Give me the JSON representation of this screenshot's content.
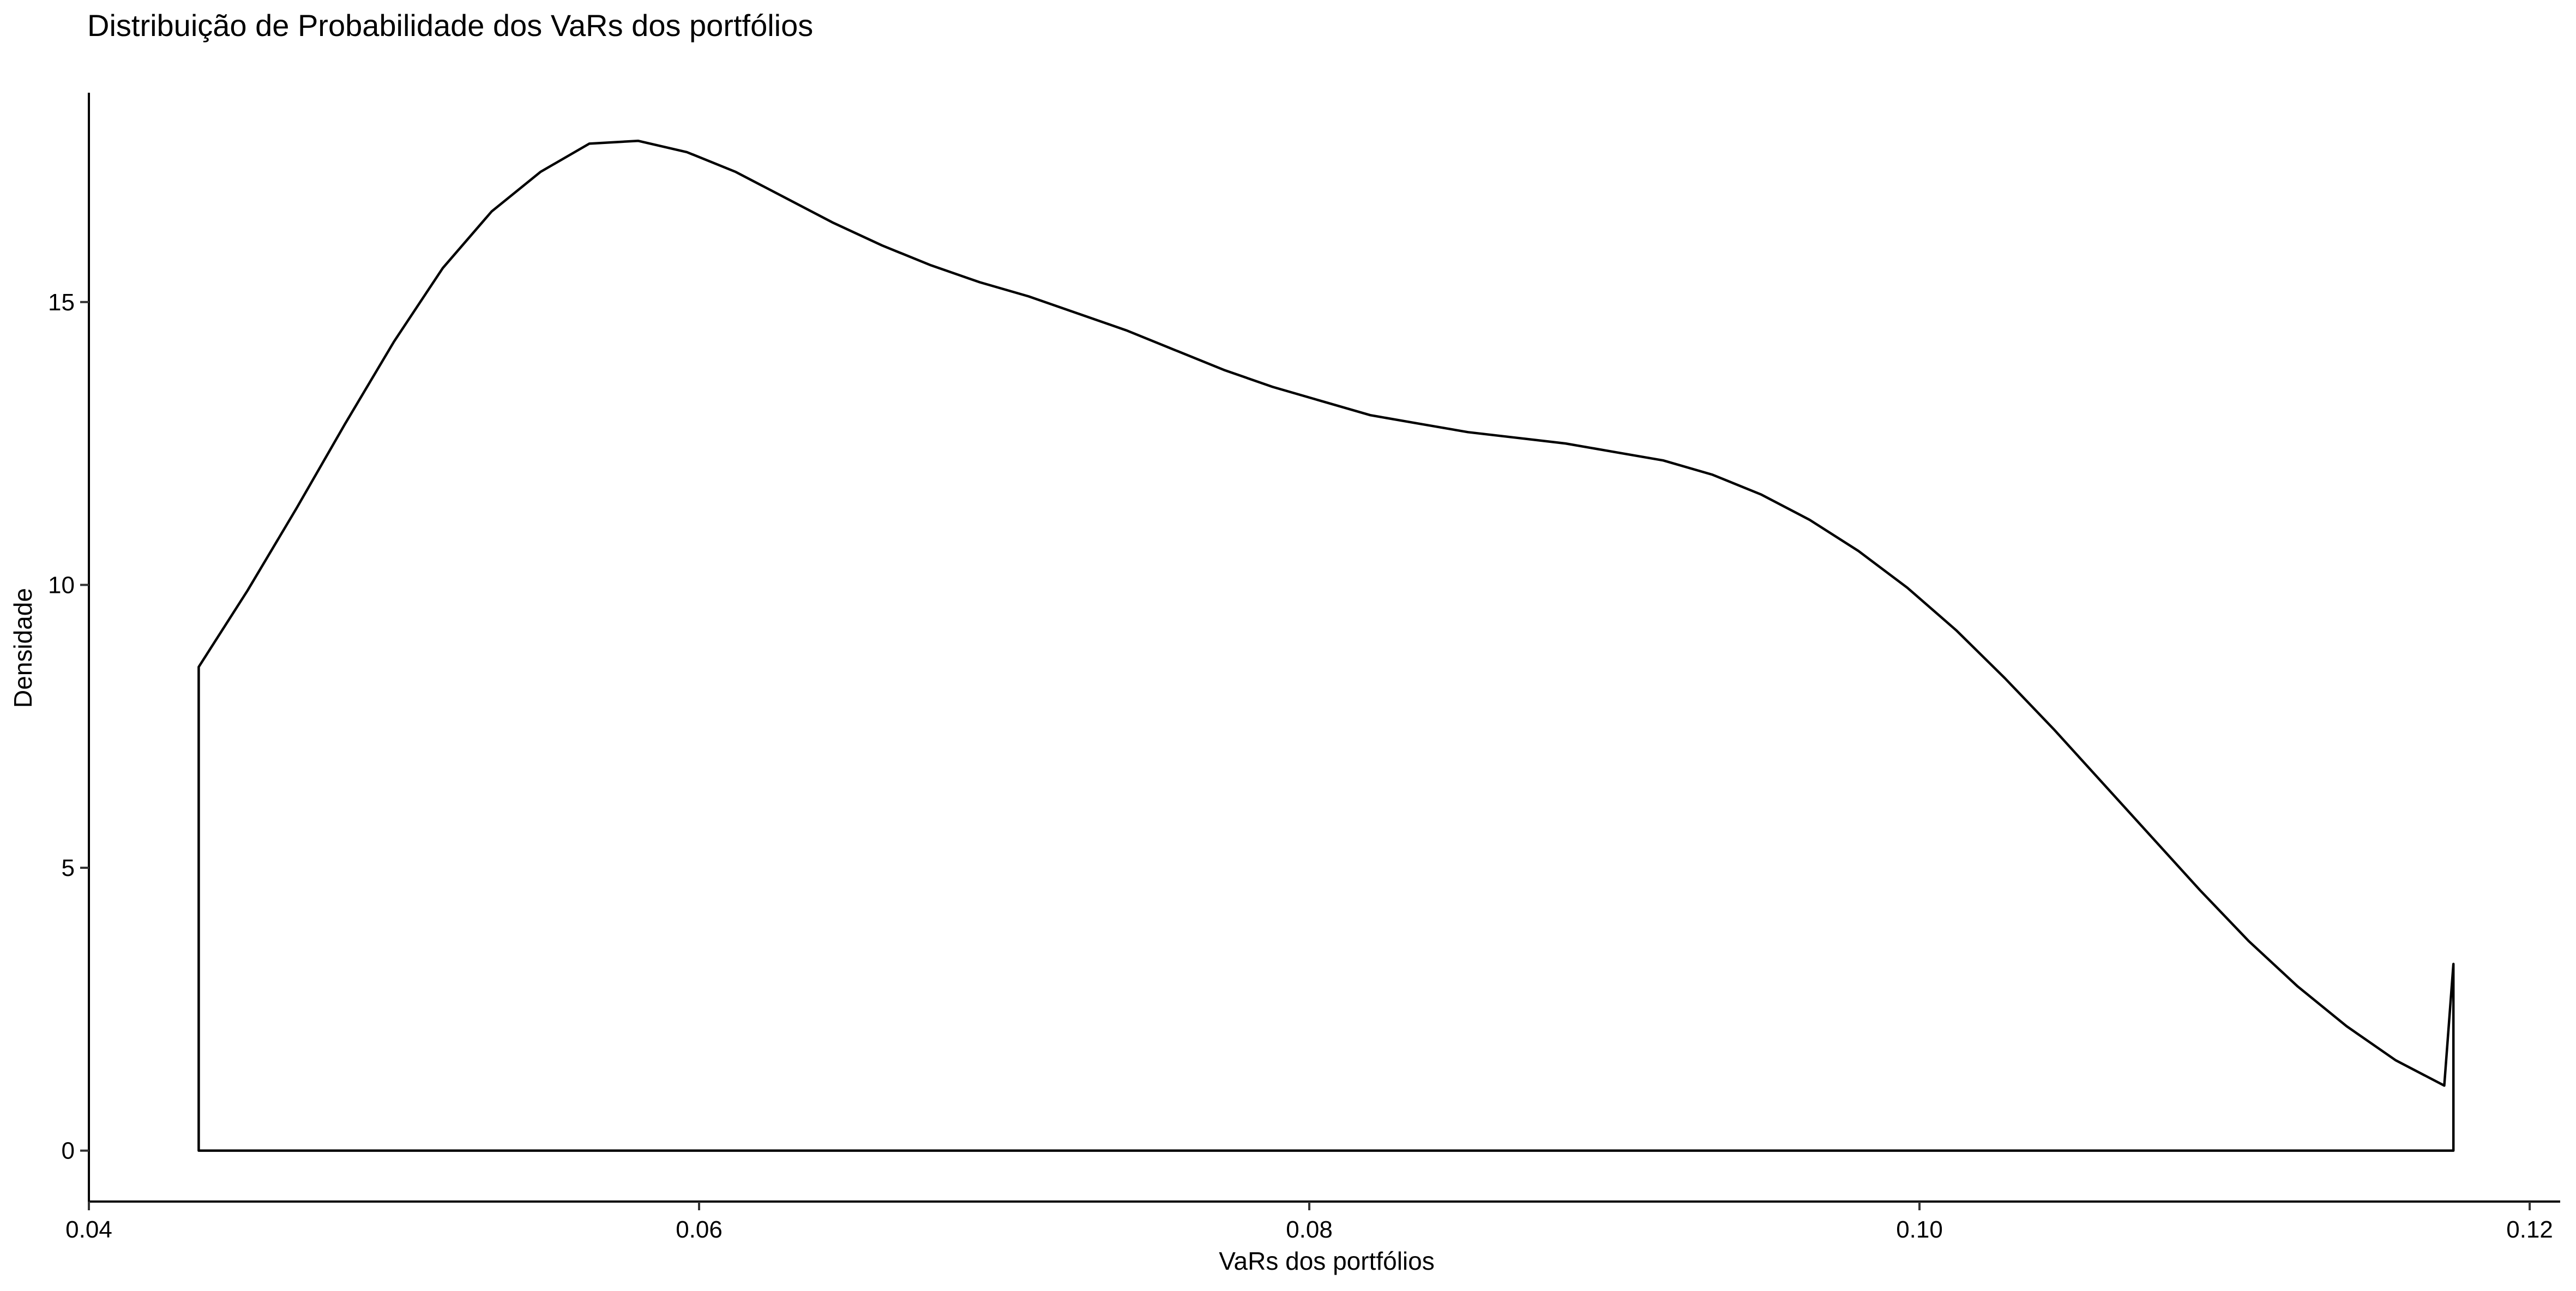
{
  "chart_data": {
    "type": "area",
    "title": "Distribuição de Probabilidade dos VaRs dos portfólios",
    "xlabel": "VaRs dos portfólios",
    "ylabel": "Densidade",
    "xlim": [
      0.04,
      0.121
    ],
    "ylim": [
      -0.9,
      18.7
    ],
    "x_ticks": [
      0.04,
      0.06,
      0.08,
      0.1,
      0.12
    ],
    "x_tick_labels": [
      "0.04",
      "0.06",
      "0.08",
      "0.10",
      "0.12"
    ],
    "y_ticks": [
      0,
      5,
      10,
      15
    ],
    "y_tick_labels": [
      "0",
      "5",
      "10",
      "15"
    ],
    "grid": false,
    "legend": "none",
    "line_color": "#000000",
    "fill_color": "#ffffff",
    "series": [
      {
        "x": [
          0.0436,
          0.0452,
          0.0468,
          0.0484,
          0.05,
          0.0516,
          0.0532,
          0.0548,
          0.0564,
          0.058,
          0.0596,
          0.0612,
          0.0628,
          0.0644,
          0.066,
          0.0676,
          0.0692,
          0.0708,
          0.0724,
          0.074,
          0.0756,
          0.0772,
          0.0788,
          0.0804,
          0.082,
          0.0836,
          0.0852,
          0.0868,
          0.0884,
          0.09,
          0.0916,
          0.0932,
          0.0948,
          0.0964,
          0.098,
          0.0996,
          0.1012,
          0.1028,
          0.1044,
          0.106,
          0.1076,
          0.1092,
          0.1108,
          0.1124,
          0.114,
          0.1156,
          0.1172,
          0.1175
        ],
        "y": [
          8.55,
          9.9,
          11.35,
          12.85,
          14.3,
          15.6,
          16.6,
          17.3,
          17.8,
          17.85,
          17.65,
          17.3,
          16.85,
          16.4,
          16.0,
          15.65,
          15.35,
          15.1,
          14.8,
          14.5,
          14.15,
          13.8,
          13.5,
          13.25,
          13.0,
          12.85,
          12.7,
          12.6,
          12.5,
          12.35,
          12.2,
          11.95,
          11.6,
          11.15,
          10.6,
          9.95,
          9.2,
          8.35,
          7.45,
          6.5,
          5.55,
          4.6,
          3.7,
          2.9,
          2.2,
          1.6,
          1.15,
          3.3
        ]
      }
    ]
  }
}
